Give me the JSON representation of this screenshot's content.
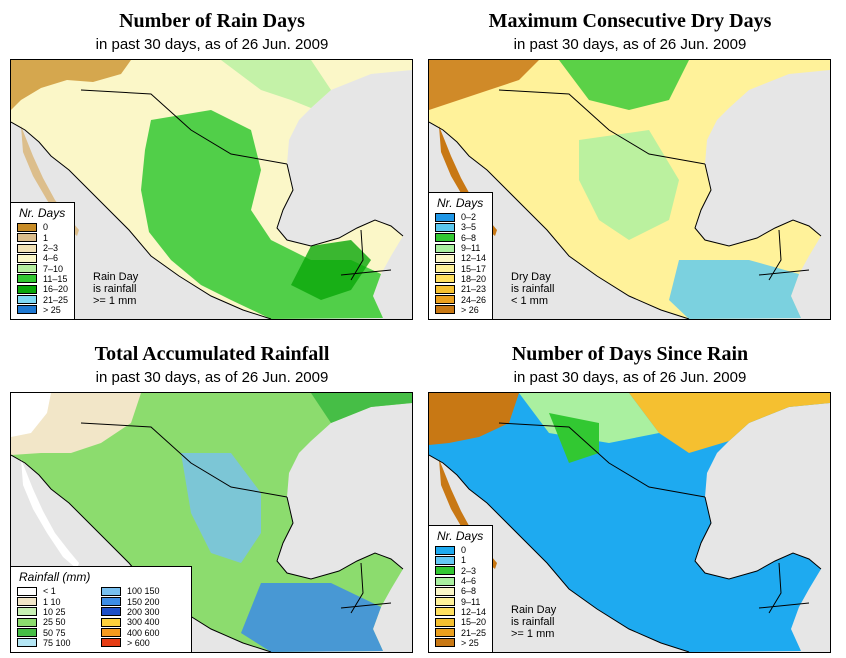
{
  "panels": [
    {
      "title": "Number of Rain Days",
      "subtitle": "in past 30 days, as of  26 Jun. 2009",
      "legend_title": "Nr. Days",
      "legend": [
        {
          "label": "0",
          "color": "#c88c26"
        },
        {
          "label": "1",
          "color": "#dcbe8c"
        },
        {
          "label": "2–3",
          "color": "#f2e2b6"
        },
        {
          "label": "4–6",
          "color": "#fbf7c8"
        },
        {
          "label": "7–10",
          "color": "#b6f0a0"
        },
        {
          "label": "11–15",
          "color": "#32c832"
        },
        {
          "label": "16–20",
          "color": "#0aa60a"
        },
        {
          "label": "21–25",
          "color": "#7ed8f5"
        },
        {
          "label": "> 25",
          "color": "#1e78d2"
        }
      ],
      "note": [
        "Rain Day",
        "is rainfall",
        ">= 1 mm"
      ]
    },
    {
      "title": "Maximum Consecutive Dry Days",
      "subtitle": "in past 30 days, as of  26 Jun. 2009",
      "legend_title": "Nr. Days",
      "legend": [
        {
          "label": "0–2",
          "color": "#1e96e6"
        },
        {
          "label": "3–5",
          "color": "#5ac8f0"
        },
        {
          "label": "6–8",
          "color": "#32c832"
        },
        {
          "label": "9–11",
          "color": "#aaf0a0"
        },
        {
          "label": "12–14",
          "color": "#fbf7c8"
        },
        {
          "label": "15–17",
          "color": "#fff29a"
        },
        {
          "label": "18–20",
          "color": "#ffe060"
        },
        {
          "label": "21–23",
          "color": "#f5c030"
        },
        {
          "label": "24–26",
          "color": "#eba01e"
        },
        {
          "label": "> 26",
          "color": "#c87814"
        }
      ],
      "note": [
        "Dry Day",
        "is rainfall",
        "< 1 mm"
      ]
    },
    {
      "title": "Total Accumulated Rainfall",
      "subtitle": "in past 30 days, as of  26 Jun. 2009",
      "legend_title": "Rainfall (mm)",
      "legend_columns": [
        [
          {
            "label": "< 1",
            "color": "#ffffff"
          },
          {
            "label": "1   10",
            "color": "#f2e6c8"
          },
          {
            "label": "10   25",
            "color": "#c8f0b4"
          },
          {
            "label": "25   50",
            "color": "#8cdc6e"
          },
          {
            "label": "50   75",
            "color": "#46be46"
          },
          {
            "label": "75  100",
            "color": "#b4e6f5"
          }
        ],
        [
          {
            "label": "100  150",
            "color": "#78c0f0"
          },
          {
            "label": "150  200",
            "color": "#3c8ce6"
          },
          {
            "label": "200  300",
            "color": "#1e50c8"
          },
          {
            "label": "300  400",
            "color": "#ffd23c"
          },
          {
            "label": "400  600",
            "color": "#f59a1e"
          },
          {
            "label": "> 600",
            "color": "#e63c14"
          }
        ]
      ]
    },
    {
      "title": "Number of Days Since Rain",
      "subtitle": "in past 30 days, as of  26 Jun. 2009",
      "legend_title": "Nr. Days",
      "legend": [
        {
          "label": "0",
          "color": "#1eaaf0"
        },
        {
          "label": "1",
          "color": "#64c8f5"
        },
        {
          "label": "2–3",
          "color": "#32c832"
        },
        {
          "label": "4–6",
          "color": "#aaf0a0"
        },
        {
          "label": "6–8",
          "color": "#fbf7c8"
        },
        {
          "label": "9–11",
          "color": "#fff29a"
        },
        {
          "label": "12–14",
          "color": "#ffe060"
        },
        {
          "label": "15–20",
          "color": "#f5c030"
        },
        {
          "label": "21–25",
          "color": "#eba01e"
        },
        {
          "label": "> 25",
          "color": "#c87814"
        }
      ],
      "note": [
        "Rain Day",
        "is rainfall",
        ">= 1 mm"
      ]
    }
  ]
}
